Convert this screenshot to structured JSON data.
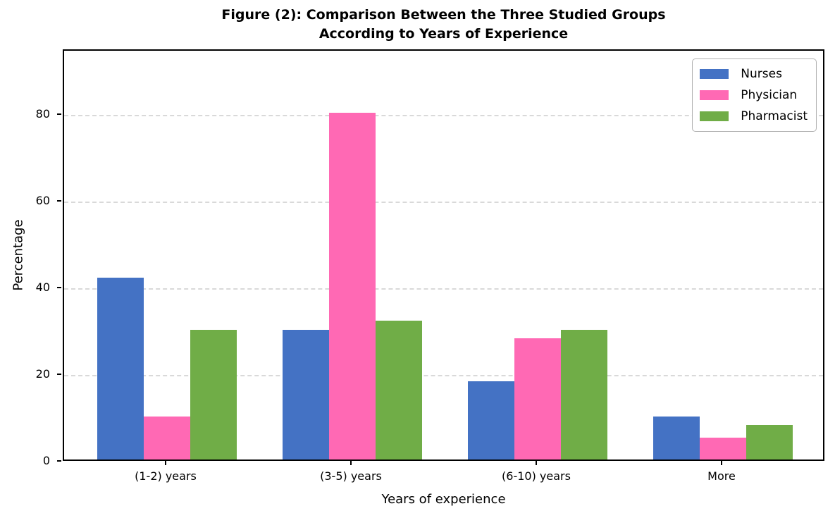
{
  "figure": {
    "title_line1": "Figure (2): Comparison Between the Three Studied Groups",
    "title_line2": "According to Years of Experience"
  },
  "chart_data": {
    "type": "bar",
    "title": "Figure (2): Comparison Between the Three Studied Groups\nAccording to Years of Experience",
    "categories": [
      "(1-2) years",
      "(3-5) years",
      "(6-10) years",
      "More"
    ],
    "series": [
      {
        "name": "Nurses",
        "color": "#4472C4",
        "values": [
          42,
          30,
          18,
          10
        ]
      },
      {
        "name": "Physician",
        "color": "#FF69B4",
        "values": [
          10,
          80,
          28,
          5
        ]
      },
      {
        "name": "Pharmacist",
        "color": "#70AD47",
        "values": [
          30,
          32,
          30,
          8
        ]
      }
    ],
    "xlabel": "Years of experience",
    "ylabel": "Percentage",
    "yticks": [
      0,
      20,
      40,
      60,
      80
    ],
    "ylim": [
      0,
      95
    ],
    "grid": "horizontal dashed",
    "grid_color": "#d9d9d9",
    "legend_position": "upper right",
    "legend_entries": [
      "Nurses",
      "Physician",
      "Pharmacist"
    ]
  }
}
